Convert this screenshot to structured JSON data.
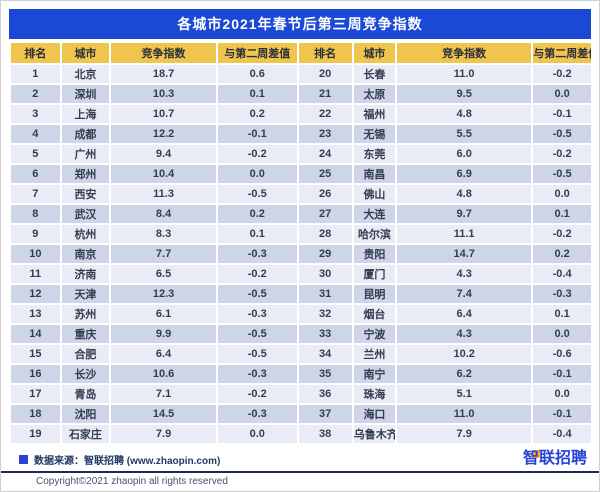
{
  "page": {
    "title": "各城市2021年春节后第三周竞争指数"
  },
  "chart_data": {
    "type": "table",
    "title": "各城市2021年春节后第三周竞争指数",
    "columns": [
      "排名",
      "城市",
      "竞争指数",
      "与第二周差值",
      "排名",
      "城市",
      "竞争指数",
      "与第二周差值"
    ],
    "rows": [
      [
        "1",
        "北京",
        "18.7",
        "0.6",
        "20",
        "长春",
        "11.0",
        "-0.2"
      ],
      [
        "2",
        "深圳",
        "10.3",
        "0.1",
        "21",
        "太原",
        "9.5",
        "0.0"
      ],
      [
        "3",
        "上海",
        "10.7",
        "0.2",
        "22",
        "福州",
        "4.8",
        "-0.1"
      ],
      [
        "4",
        "成都",
        "12.2",
        "-0.1",
        "23",
        "无锡",
        "5.5",
        "-0.5"
      ],
      [
        "5",
        "广州",
        "9.4",
        "-0.2",
        "24",
        "东莞",
        "6.0",
        "-0.2"
      ],
      [
        "6",
        "郑州",
        "10.4",
        "0.0",
        "25",
        "南昌",
        "6.9",
        "-0.5"
      ],
      [
        "7",
        "西安",
        "11.3",
        "-0.5",
        "26",
        "佛山",
        "4.8",
        "0.0"
      ],
      [
        "8",
        "武汉",
        "8.4",
        "0.2",
        "27",
        "大连",
        "9.7",
        "0.1"
      ],
      [
        "9",
        "杭州",
        "8.3",
        "0.1",
        "28",
        "哈尔滨",
        "11.1",
        "-0.2"
      ],
      [
        "10",
        "南京",
        "7.7",
        "-0.3",
        "29",
        "贵阳",
        "14.7",
        "0.2"
      ],
      [
        "11",
        "济南",
        "6.5",
        "-0.2",
        "30",
        "厦门",
        "4.3",
        "-0.4"
      ],
      [
        "12",
        "天津",
        "12.3",
        "-0.5",
        "31",
        "昆明",
        "7.4",
        "-0.3"
      ],
      [
        "13",
        "苏州",
        "6.1",
        "-0.3",
        "32",
        "烟台",
        "6.4",
        "0.1"
      ],
      [
        "14",
        "重庆",
        "9.9",
        "-0.5",
        "33",
        "宁波",
        "4.3",
        "0.0"
      ],
      [
        "15",
        "合肥",
        "6.4",
        "-0.5",
        "34",
        "兰州",
        "10.2",
        "-0.6"
      ],
      [
        "16",
        "长沙",
        "10.6",
        "-0.3",
        "35",
        "南宁",
        "6.2",
        "-0.1"
      ],
      [
        "17",
        "青岛",
        "7.1",
        "-0.2",
        "36",
        "珠海",
        "5.1",
        "0.0"
      ],
      [
        "18",
        "沈阳",
        "14.5",
        "-0.3",
        "37",
        "海口",
        "11.0",
        "-0.1"
      ],
      [
        "19",
        "石家庄",
        "7.9",
        "0.0",
        "38",
        "乌鲁木齐",
        "7.9",
        "-0.4"
      ]
    ]
  },
  "footer": {
    "source_text": "数据来源：智联招聘 (www.zhaopin.com)",
    "logo_text": "智联招聘",
    "copyright": "Copyright©2021 zhaopin all rights reserved"
  },
  "colors": {
    "title_bar_blue": "#1b49d6",
    "header_yellow": "#f0c54d",
    "row_light": "#e9ecf6",
    "row_dark": "#cfd5e9",
    "footer_navy": "#1f3864",
    "logo_blue": "#2743d8",
    "logo_orange": "#f7a928"
  }
}
